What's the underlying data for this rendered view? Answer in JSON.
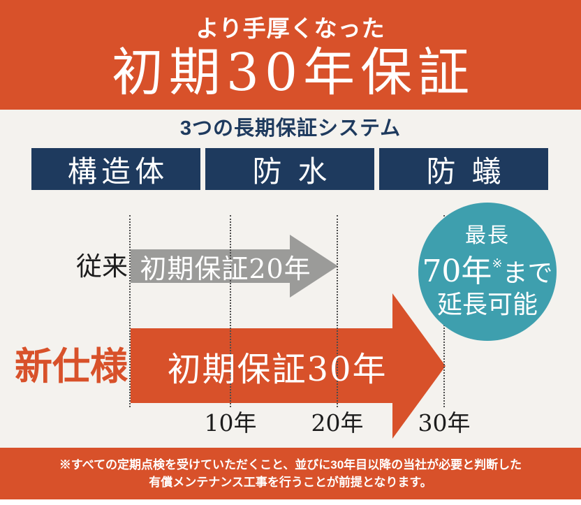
{
  "header": {
    "tagline": "より手厚くなった",
    "title": "初期30年保証"
  },
  "subtitle": "3つの長期保証システム",
  "categories": [
    {
      "label": "構造体"
    },
    {
      "label": "防水"
    },
    {
      "label": "防蟻"
    }
  ],
  "timeline": {
    "conventional_label": "従来",
    "conventional_arrow_text": "初期保証20年",
    "new_label": "新仕様",
    "new_arrow_text": "初期保証30年"
  },
  "badge": {
    "line1": "最長",
    "line2_num": "70年",
    "line2_ref": "※",
    "line2_suffix": "まで",
    "line3": "延長可能"
  },
  "axis_ticks": [
    "10年",
    "20年",
    "30年"
  ],
  "footnote": {
    "line1": "※すべての定期点検を受けていただくこと、並びに30年目以降の当社が必要と判断した",
    "line2": "有償メンテナンス工事を行うことが前提となります。"
  },
  "chart_data": {
    "type": "bar",
    "orientation": "horizontal-timeline-arrows",
    "title": "3つの長期保証システム",
    "x_unit": "年",
    "x_ticks": [
      10,
      20,
      30
    ],
    "x_range": [
      0,
      30
    ],
    "grid": "vertical-dotted",
    "series": [
      {
        "name": "従来",
        "label": "初期保証20年",
        "start": 0,
        "end": 20,
        "color": "#9B9B99"
      },
      {
        "name": "新仕様",
        "label": "初期保証30年",
        "start": 0,
        "end": 30,
        "color": "#D8512A"
      }
    ],
    "annotation": "最長70年※まで延長可能"
  },
  "colors": {
    "orange": "#D8512A",
    "navy": "#1E3A5E",
    "teal": "#3E9FAE",
    "gray_arrow": "#9B9B99",
    "background_beige": "#F4F2EE",
    "text_dark": "#1C1C1C",
    "white": "#FFFFFF"
  }
}
